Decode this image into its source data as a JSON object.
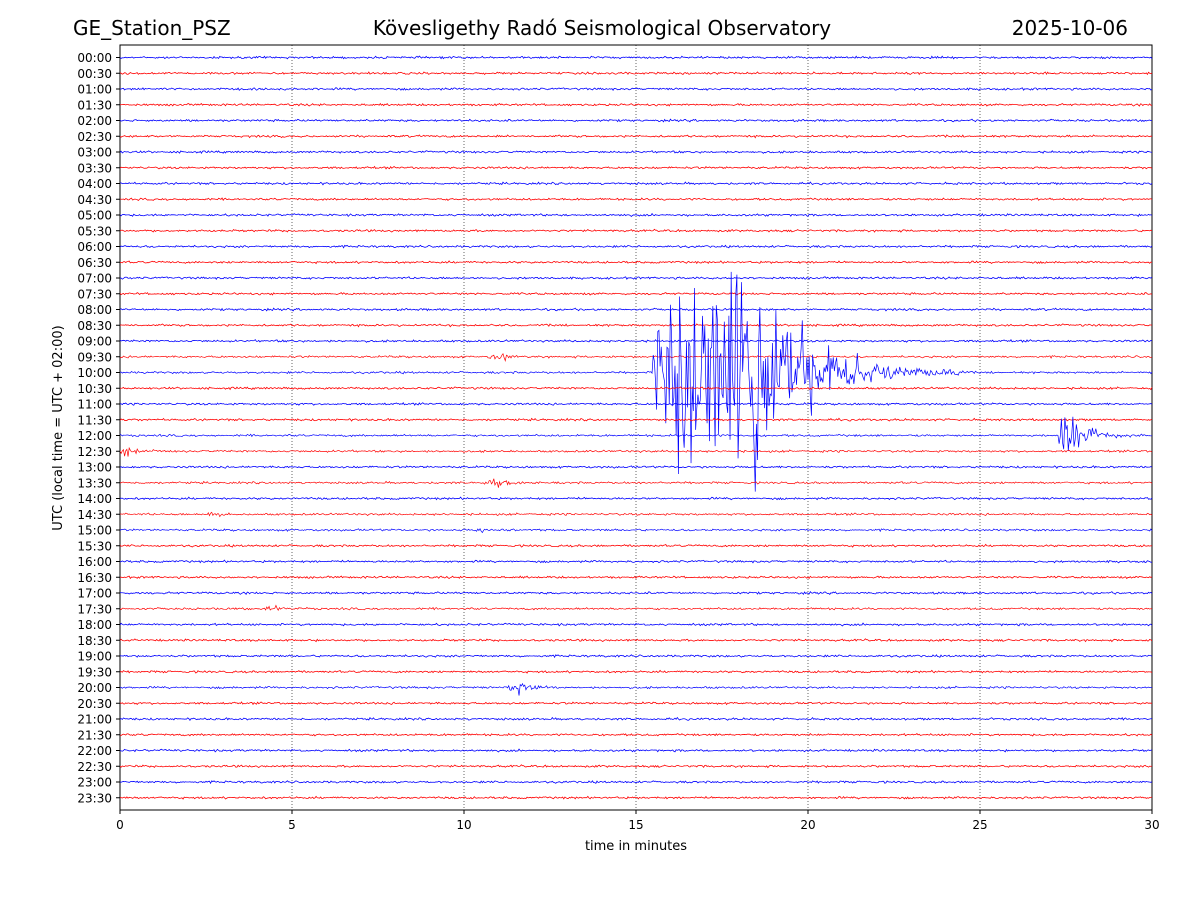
{
  "header": {
    "station": "GE_Station_PSZ",
    "observatory": "Kövesligethy Radó Seismological Observatory",
    "date": "2025-10-06"
  },
  "colors": {
    "even_trace": "#0000ff",
    "odd_trace": "#ff0000",
    "grid": "#000000"
  },
  "chart_data": {
    "type": "line",
    "title": "Kövesligethy Radó Seismological Observatory",
    "xlabel": "time in minutes",
    "ylabel": "UTC (local time = UTC + 02:00)",
    "xlim": [
      0,
      30
    ],
    "x_ticks": [
      0,
      5,
      10,
      15,
      20,
      25,
      30
    ],
    "grid_x": true,
    "trace_labels": [
      "00:00",
      "00:30",
      "01:00",
      "01:30",
      "02:00",
      "02:30",
      "03:00",
      "03:30",
      "04:00",
      "04:30",
      "05:00",
      "05:30",
      "06:00",
      "06:30",
      "07:00",
      "07:30",
      "08:00",
      "08:30",
      "09:00",
      "09:30",
      "10:00",
      "10:30",
      "11:00",
      "11:30",
      "12:00",
      "12:30",
      "13:00",
      "13:30",
      "14:00",
      "14:30",
      "15:00",
      "15:30",
      "16:00",
      "16:30",
      "17:00",
      "17:30",
      "18:00",
      "18:30",
      "19:00",
      "19:30",
      "20:00",
      "20:30",
      "21:00",
      "21:30",
      "22:00",
      "22:30",
      "23:00",
      "23:30"
    ],
    "trace_colors": "alternating blue (full hour) / red (half hour)",
    "events": [
      {
        "trace": "10:00",
        "start_min": 15.5,
        "peak_min": 17.8,
        "end_min": 24.5,
        "relative_amplitude": 1.0
      },
      {
        "trace": "12:00",
        "start_min": 27.3,
        "peak_min": 27.4,
        "end_min": 30,
        "relative_amplitude": 0.2
      },
      {
        "trace": "20:00",
        "start_min": 11.3,
        "peak_min": 11.5,
        "end_min": 13,
        "relative_amplitude": 0.08
      },
      {
        "trace": "15:00",
        "start_min": 10.3,
        "peak_min": 10.4,
        "end_min": 11.5,
        "relative_amplitude": 0.04
      },
      {
        "trace": "09:30",
        "start_min": 10.7,
        "peak_min": 11.2,
        "end_min": 12,
        "relative_amplitude": 0.04
      },
      {
        "trace": "12:30",
        "start_min": 0,
        "peak_min": 0.2,
        "end_min": 1.5,
        "relative_amplitude": 0.04
      },
      {
        "trace": "17:30",
        "start_min": 4.2,
        "peak_min": 4.5,
        "end_min": 5.5,
        "relative_amplitude": 0.03
      },
      {
        "trace": "13:30",
        "start_min": 10.5,
        "peak_min": 11,
        "end_min": 12.5,
        "relative_amplitude": 0.03
      },
      {
        "trace": "14:30",
        "start_min": 2.5,
        "peak_min": 2.7,
        "end_min": 3.5,
        "relative_amplitude": 0.03
      }
    ]
  }
}
